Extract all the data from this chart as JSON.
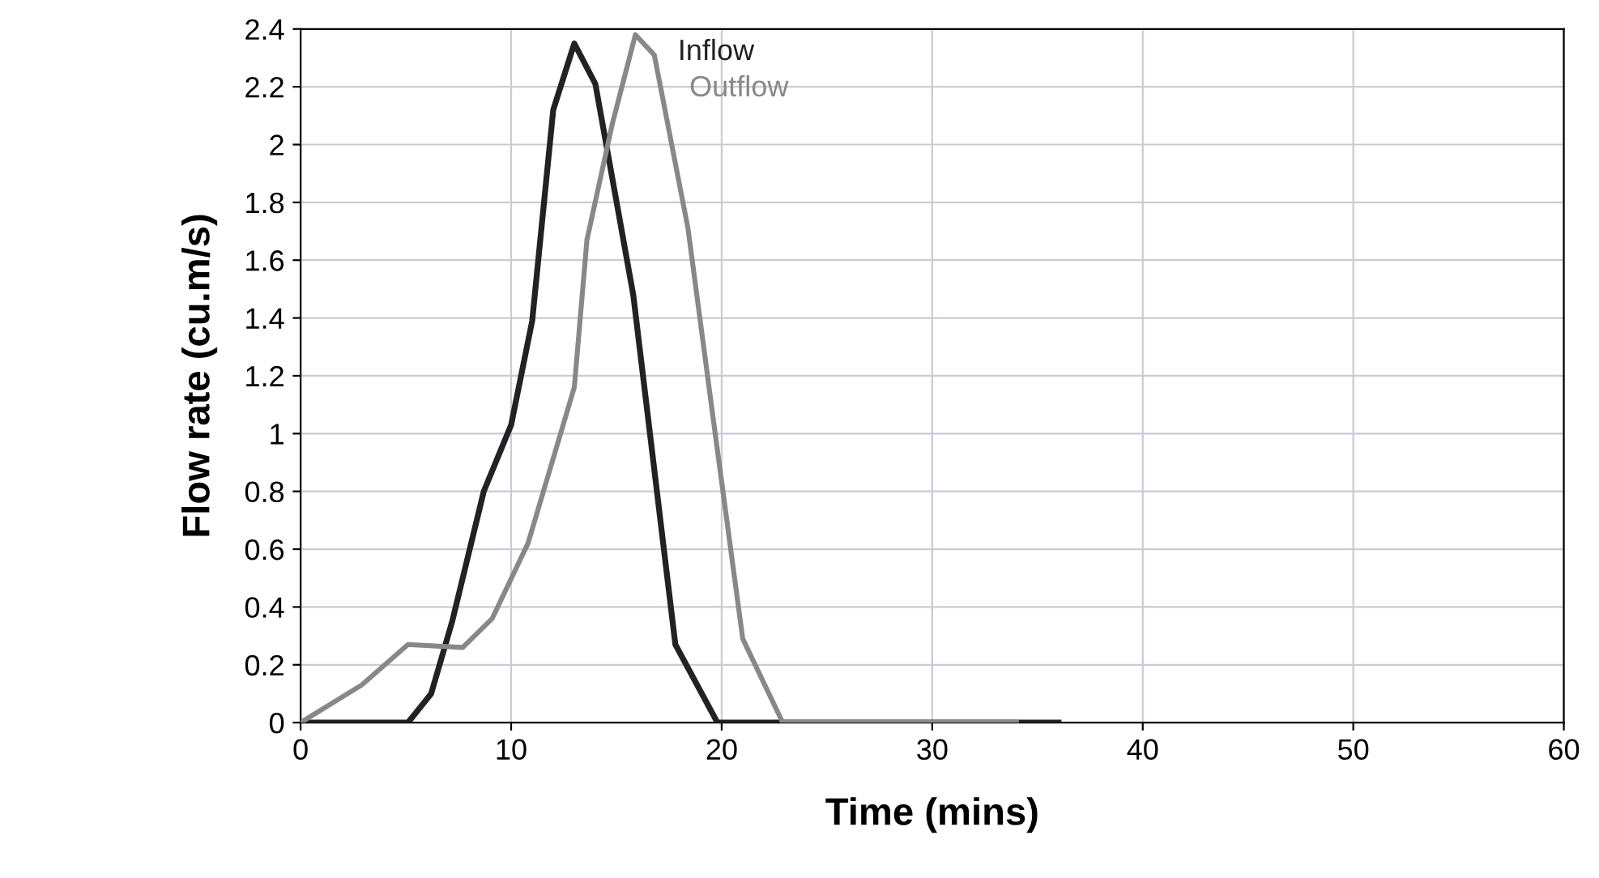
{
  "chart_data": {
    "type": "line",
    "xlabel": "Time (mins)",
    "ylabel": "Flow rate (cu.m/s)",
    "xlim": [
      0,
      60
    ],
    "xticks": [
      0,
      10,
      20,
      30,
      40,
      50,
      60
    ],
    "ylim": [
      0,
      2.4
    ],
    "yticks": [
      0,
      0.2,
      0.4,
      0.6,
      0.8,
      1,
      1.2,
      1.4,
      1.6,
      1.8,
      2,
      2.2,
      2.4
    ],
    "grid": true,
    "legend": false,
    "series": [
      {
        "name": "Inflow",
        "color": "#222222",
        "x": [
          0,
          5.1,
          6.2,
          7.2,
          8.7,
          10,
          11,
          12,
          13,
          14,
          15.8,
          17.8,
          19.8,
          36
        ],
        "values": [
          0,
          0,
          0.1,
          0.35,
          0.8,
          1.03,
          1.39,
          2.12,
          2.35,
          2.21,
          1.48,
          0.27,
          0,
          0
        ]
      },
      {
        "name": "Outflow",
        "color": "#888888",
        "x": [
          0,
          2.9,
          5.1,
          7.7,
          9.1,
          10.8,
          13,
          13.6,
          14.8,
          15.9,
          16.8,
          18.4,
          19.6,
          21,
          22.9,
          34
        ],
        "values": [
          0,
          0.13,
          0.27,
          0.26,
          0.36,
          0.62,
          1.16,
          1.67,
          2.07,
          2.38,
          2.31,
          1.71,
          1.05,
          0.29,
          0,
          0
        ]
      }
    ]
  }
}
